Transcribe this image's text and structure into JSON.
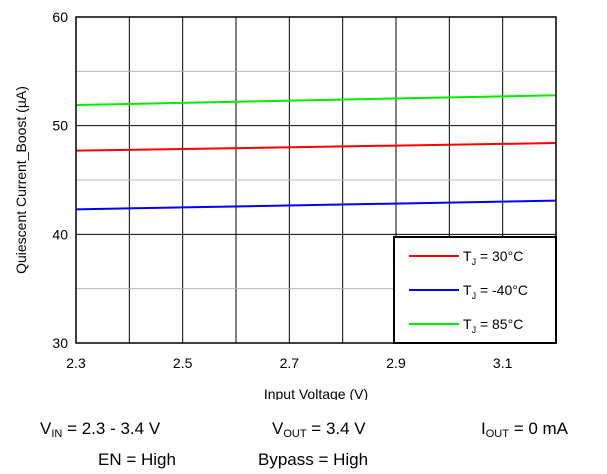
{
  "chart_data": {
    "type": "line",
    "xlabel": "Input Voltage (V)",
    "ylabel": "Quiescent Current_Boost (µA)",
    "xlim": [
      2.3,
      3.2
    ],
    "ylim": [
      30,
      60
    ],
    "x_ticks": [
      2.3,
      2.5,
      2.7,
      2.9,
      3.1
    ],
    "x_tick_labels": [
      "2.3",
      "2.5",
      "2.7",
      "2.9",
      "3.1"
    ],
    "y_ticks": [
      30,
      40,
      50,
      60
    ],
    "y_tick_labels": [
      "30",
      "40",
      "50",
      "60"
    ],
    "grid": true,
    "legend_position": "bottom-right",
    "series": [
      {
        "name": "TJ = 30°C",
        "name_main": "T",
        "name_sub": "J",
        "name_rest": " = 30°C",
        "color": "#ff0000",
        "x": [
          2.3,
          3.2
        ],
        "y": [
          47.7,
          48.4
        ]
      },
      {
        "name": "TJ = -40°C",
        "name_main": "T",
        "name_sub": "J",
        "name_rest": " = -40°C",
        "color": "#0000ff",
        "x": [
          2.3,
          3.2
        ],
        "y": [
          42.3,
          43.1
        ]
      },
      {
        "name": "TJ = 85°C",
        "name_main": "T",
        "name_sub": "J",
        "name_rest": " = 85°C",
        "color": "#00ee00",
        "x": [
          2.3,
          3.2
        ],
        "y": [
          51.9,
          52.8
        ]
      }
    ]
  },
  "conditions": {
    "vin": {
      "main": "V",
      "sub": "IN",
      "rest": " = 2.3 - 3.4 V"
    },
    "vout": {
      "main": "V",
      "sub": "OUT",
      "rest": " = 3.4 V"
    },
    "iout": {
      "main": "I",
      "sub": "OUT",
      "rest": " = 0 mA"
    },
    "en": "EN = High",
    "bypass": "Bypass = High"
  }
}
